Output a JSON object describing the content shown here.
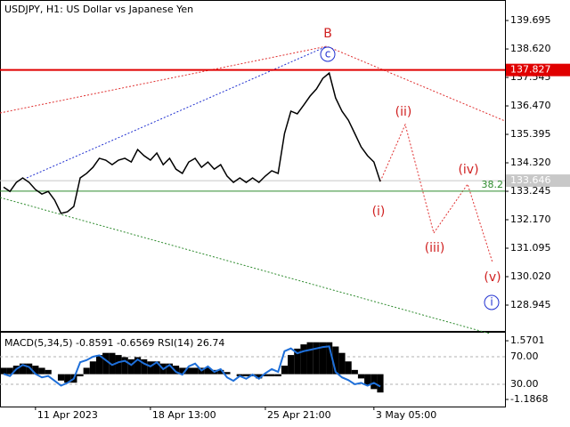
{
  "chart_data": [
    {
      "type": "line",
      "title": "USDJPY, H1:  US Dollar vs Japanese Yen",
      "color": "#000000",
      "categories": [
        null,
        null,
        null,
        null,
        null,
        "11 Apr 2023",
        null,
        null,
        null,
        null,
        null,
        null,
        null,
        null,
        null,
        null,
        null,
        null,
        null,
        null,
        null,
        null,
        null,
        "18 Apr 13:00",
        null,
        null,
        null,
        null,
        null,
        null,
        null,
        null,
        null,
        null,
        null,
        null,
        null,
        null,
        null,
        null,
        null,
        "25 Apr 21:00",
        null,
        null,
        null,
        null,
        null,
        null,
        null,
        null,
        null,
        null,
        null,
        null,
        null,
        null,
        null,
        null,
        "3 May 05:00",
        null
      ],
      "values": [
        133.4,
        133.24,
        133.58,
        133.75,
        133.58,
        133.31,
        133.14,
        133.24,
        132.91,
        132.41,
        132.47,
        132.67,
        133.75,
        133.92,
        134.15,
        134.49,
        134.42,
        134.25,
        134.42,
        134.49,
        134.35,
        134.82,
        134.59,
        134.42,
        134.69,
        134.25,
        134.49,
        134.08,
        133.92,
        134.35,
        134.49,
        134.15,
        134.35,
        134.08,
        134.25,
        133.82,
        133.58,
        133.75,
        133.58,
        133.75,
        133.58,
        133.82,
        134.02,
        133.92,
        135.43,
        136.27,
        136.17,
        136.5,
        136.84,
        137.11,
        137.51,
        137.71,
        136.77,
        136.27,
        135.93,
        135.43,
        134.92,
        134.59,
        134.35,
        133.61
      ],
      "ylim": [
        127.97,
        140.47
      ],
      "yticks": [
        139.695,
        {
          "value": 138.62,
          "label": "138.620"
        },
        137.545,
        {
          "value": 136.47,
          "label": "136.470"
        },
        135.395,
        {
          "value": 134.32,
          "label": "134.320"
        },
        133.245,
        {
          "value": 132.17,
          "label": "132.170"
        },
        131.095,
        {
          "value": 130.02,
          "label": "130.020"
        },
        128.945
      ],
      "levels": [
        {
          "value": 137.827,
          "color": "#e00000"
        },
        {
          "value": 133.646,
          "color": "#c8c8c8"
        }
      ],
      "fib_level": {
        "value": 133.25,
        "fib": 38.2,
        "color": "#2e8b2e"
      },
      "annotations": [
        "B",
        "c",
        "(i)",
        "(ii)",
        "(iii)",
        "(iv)",
        "(v)",
        "i"
      ]
    },
    {
      "type": "combo",
      "title": "MACD(5,34,5) -0.8591 -0.6569 RSI(14) 26.74",
      "series": [
        {
          "color": "#000000",
          "values": [
            0.3,
            0.3,
            0.4,
            0.5,
            0.5,
            0.4,
            0.3,
            0.2,
            0.0,
            -0.3,
            -0.4,
            -0.4,
            -0.1,
            0.3,
            0.6,
            0.9,
            1.0,
            1.0,
            0.9,
            0.8,
            0.7,
            0.8,
            0.7,
            0.6,
            0.6,
            0.5,
            0.5,
            0.4,
            0.3,
            0.3,
            0.3,
            0.3,
            0.3,
            0.2,
            0.2,
            0.1,
            0.0,
            -0.1,
            -0.1,
            -0.1,
            -0.2,
            -0.1,
            -0.1,
            -0.1,
            0.4,
            0.9,
            1.2,
            1.4,
            1.5,
            1.5,
            1.5,
            1.5,
            1.3,
            1.0,
            0.6,
            0.2,
            -0.2,
            -0.5,
            -0.7,
            -0.86
          ]
        },
        {
          "color": "#1e6fd9",
          "axis": "y2",
          "values": [
            45,
            42,
            52,
            58,
            55,
            45,
            40,
            42,
            35,
            28,
            32,
            38,
            62,
            65,
            70,
            72,
            65,
            58,
            62,
            64,
            58,
            66,
            60,
            56,
            62,
            52,
            58,
            48,
            44,
            56,
            60,
            50,
            56,
            48,
            52,
            40,
            35,
            42,
            38,
            44,
            38,
            46,
            52,
            48,
            78,
            82,
            75,
            78,
            80,
            82,
            84,
            85,
            48,
            40,
            36,
            30,
            32,
            28,
            32,
            26.74
          ]
        }
      ],
      "ylim": [
        -1.52,
        1.99
      ],
      "yticks": [
        1.5701,
        -1.1868
      ],
      "y2lim": [
        -2.3,
        106.1
      ],
      "y2ticks": [
        {
          "value": 70,
          "label": "70.00"
        },
        {
          "value": 30,
          "label": "30.00"
        }
      ]
    }
  ]
}
